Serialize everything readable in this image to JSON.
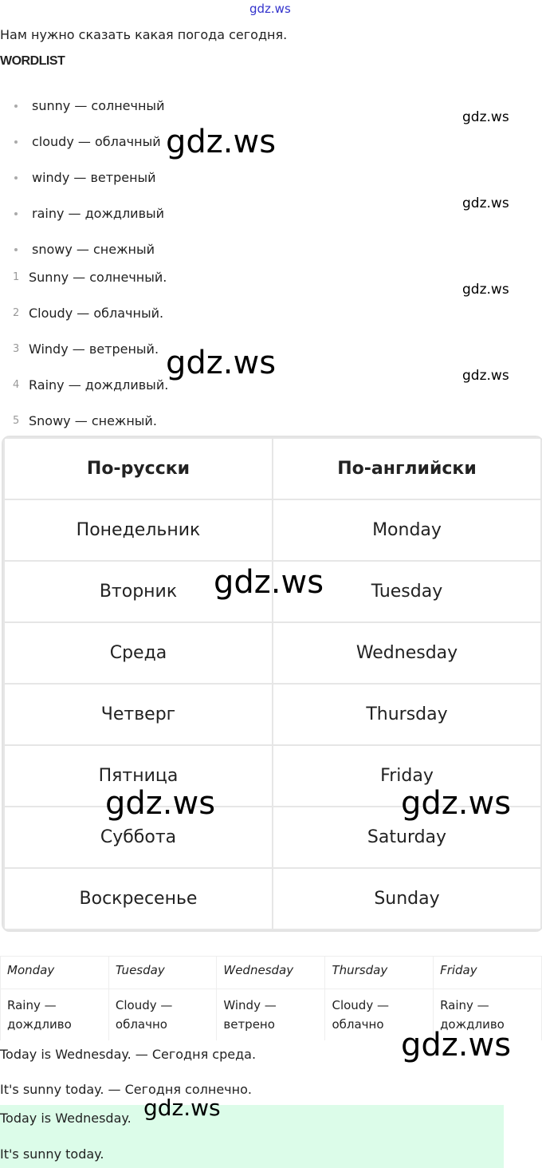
{
  "watermark": "gdz.ws",
  "intro": "Нам нужно сказать какая погода сегодня.",
  "heading": "WORDLIST",
  "bullets": [
    "sunny — солнечный",
    "cloudy — облачный",
    "windy — ветреный",
    "rainy — дождливый",
    "snowy — снежный"
  ],
  "numbered": [
    "Sunny — солнечный.",
    "Cloudy — облачный.",
    "Windy — ветреный.",
    "Rainy — дождливый.",
    "Snowy — снежный."
  ],
  "numbers": [
    "1",
    "2",
    "3",
    "4",
    "5"
  ],
  "days_table": [
    [
      "По-русски",
      "По-английски"
    ],
    [
      "Понедельник",
      "Monday"
    ],
    [
      "Вторник",
      "Tuesday"
    ],
    [
      "Среда",
      "Wednesday"
    ],
    [
      "Четверг",
      "Thursday"
    ],
    [
      "Пятница",
      "Friday"
    ],
    [
      "Суббота",
      "Saturday"
    ],
    [
      "Воскресенье",
      "Sunday"
    ]
  ],
  "weather_table": {
    "headers": [
      "Monday",
      "Tuesday",
      "Wednesday",
      "Thursday",
      "Friday"
    ],
    "cells": [
      [
        "Rainy —",
        "дождливо"
      ],
      [
        "Cloudy —",
        "облачно"
      ],
      [
        "Windy —",
        "ветрено"
      ],
      [
        "Cloudy —",
        "облачно"
      ],
      [
        "Rainy —",
        "дождливо"
      ]
    ]
  },
  "sentences": [
    "Today is Wednesday. — Сегодня среда.",
    "It's sunny today. — Сегодня солнечно."
  ],
  "answer": [
    "Today is Wednesday.",
    "It's sunny today."
  ],
  "colors": {
    "answer_bg": "#dcfce9",
    "header_link": "#3333cc"
  }
}
